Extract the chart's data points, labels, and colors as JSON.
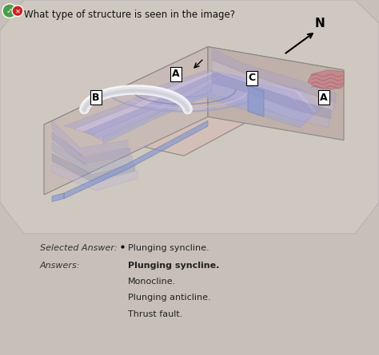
{
  "question": "What type of structure is seen in the image?",
  "selected_answer_label": "Selected Answer:",
  "selected_answer": "Plunging syncline.",
  "answers_label": "Answers:",
  "answers": [
    "Plunging syncline.",
    "Monocline.",
    "Plunging anticline.",
    "Thrust fault."
  ],
  "correct_answer": "Plunging syncline.",
  "bg_color": "#e8e4e0",
  "image_bg": "#d8cfc8",
  "check_color": "#4a9e4a",
  "x_color": "#cc2222",
  "question_color": "#111111",
  "text_color": "#222222",
  "label_color": "#333333",
  "geo_image_placeholder": true,
  "fig_width": 4.74,
  "fig_height": 4.45,
  "dpi": 100
}
